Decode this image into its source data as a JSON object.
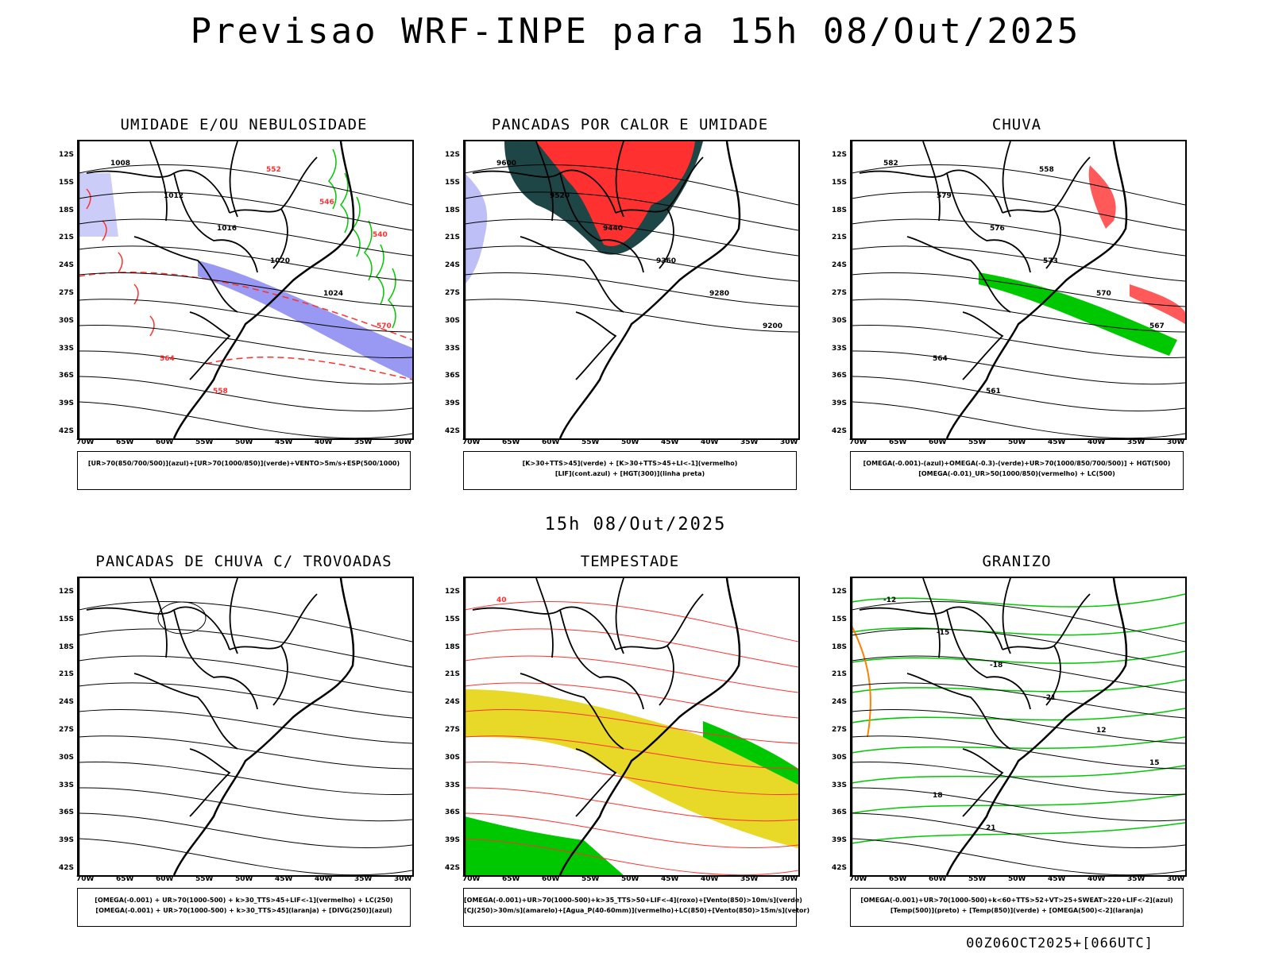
{
  "title": "Previsao WRF-INPE  para 15h 08/Out/2025",
  "subtitle": "15h 08/Out/2025",
  "footer": "00Z06OCT2025+[066UTC]",
  "lat_labels": [
    "12S",
    "15S",
    "18S",
    "21S",
    "24S",
    "27S",
    "30S",
    "33S",
    "36S",
    "39S",
    "42S"
  ],
  "lon_labels": [
    "70W",
    "65W",
    "60W",
    "55W",
    "50W",
    "45W",
    "40W",
    "35W",
    "30W"
  ],
  "colors": {
    "humid_blue": "#8080f0",
    "green": "#00c800",
    "red": "#ff3030",
    "dark": "#1e4646",
    "yellow": "#e8d828",
    "orange": "#ff8000"
  },
  "panels": [
    {
      "id": "umidade",
      "title": "UMIDADE E/OU NEBULOSIDADE",
      "legend": [
        "[UR>70(850/700/500)](azul)+[UR>70(1000/850)](verde)+VENTO>5m/s+ESP(500/1000)"
      ],
      "contour_labels": [
        "1008",
        "1012",
        "1016",
        "1020",
        "1024",
        "570",
        "564",
        "558",
        "552",
        "546",
        "540"
      ]
    },
    {
      "id": "pancadas",
      "title": "PANCADAS POR CALOR E UMIDADE",
      "legend": [
        "[K>30+TTS>45](verde) + [K>30+TTS>45+LI<-1](vermelho)",
        "[LIF](cont.azul) + [HGT(300)](linha preta)"
      ],
      "contour_labels": [
        "9600",
        "9520",
        "9440",
        "9360",
        "9280",
        "9200"
      ]
    },
    {
      "id": "chuva",
      "title": "CHUVA",
      "legend": [
        "[OMEGA(-0.001)-(azul)+OMEGA(-0.3)-(verde)+UR>70(1000/850/700/500)] + HGT(500)",
        "[OMEGA(-0.01)_UR>50(1000/850)(vermelho) + LC(500)"
      ],
      "contour_labels": [
        "582",
        "579",
        "576",
        "573",
        "570",
        "567",
        "564",
        "561",
        "558"
      ]
    },
    {
      "id": "trovoadas",
      "title": "PANCADAS DE CHUVA C/ TROVOADAS",
      "legend": [
        "[OMEGA(-0.001) + UR>70(1000-500) + k>30_TTS>45+LIF<-1](vermelho) + LC(250)",
        "[OMEGA(-0.001) + UR>70(1000-500) + k>30_TTS>45](laranja) + [DIVG(250)](azul)"
      ],
      "contour_labels": []
    },
    {
      "id": "tempestade",
      "title": "TEMPESTADE",
      "legend": [
        "[OMEGA(-0.001)+UR>70(1000-500)+k>35_TTS>50+LIF<-4](roxo)+[Vento(850)>10m/s](verde)",
        "[CJ(250)>30m/s](amarelo)+[Agua_P(40-60mm)](vermelho)+LC(850)+[Vento(850)>15m/s](vetor)"
      ],
      "contour_labels": [
        "40"
      ]
    },
    {
      "id": "granizo",
      "title": "GRANIZO",
      "legend": [
        "[OMEGA(-0.001)+UR>70(1000-500)+k<60+TTS>52+VT>25+SWEAT>220+LIF<-2](azul)",
        "[Temp(500)](preto) + [Temp(850)](verde) + [OMEGA(500)<-2](laranja)"
      ],
      "contour_labels": [
        "-12",
        "-15",
        "-18",
        "-21",
        "12",
        "15",
        "18",
        "21"
      ]
    }
  ]
}
